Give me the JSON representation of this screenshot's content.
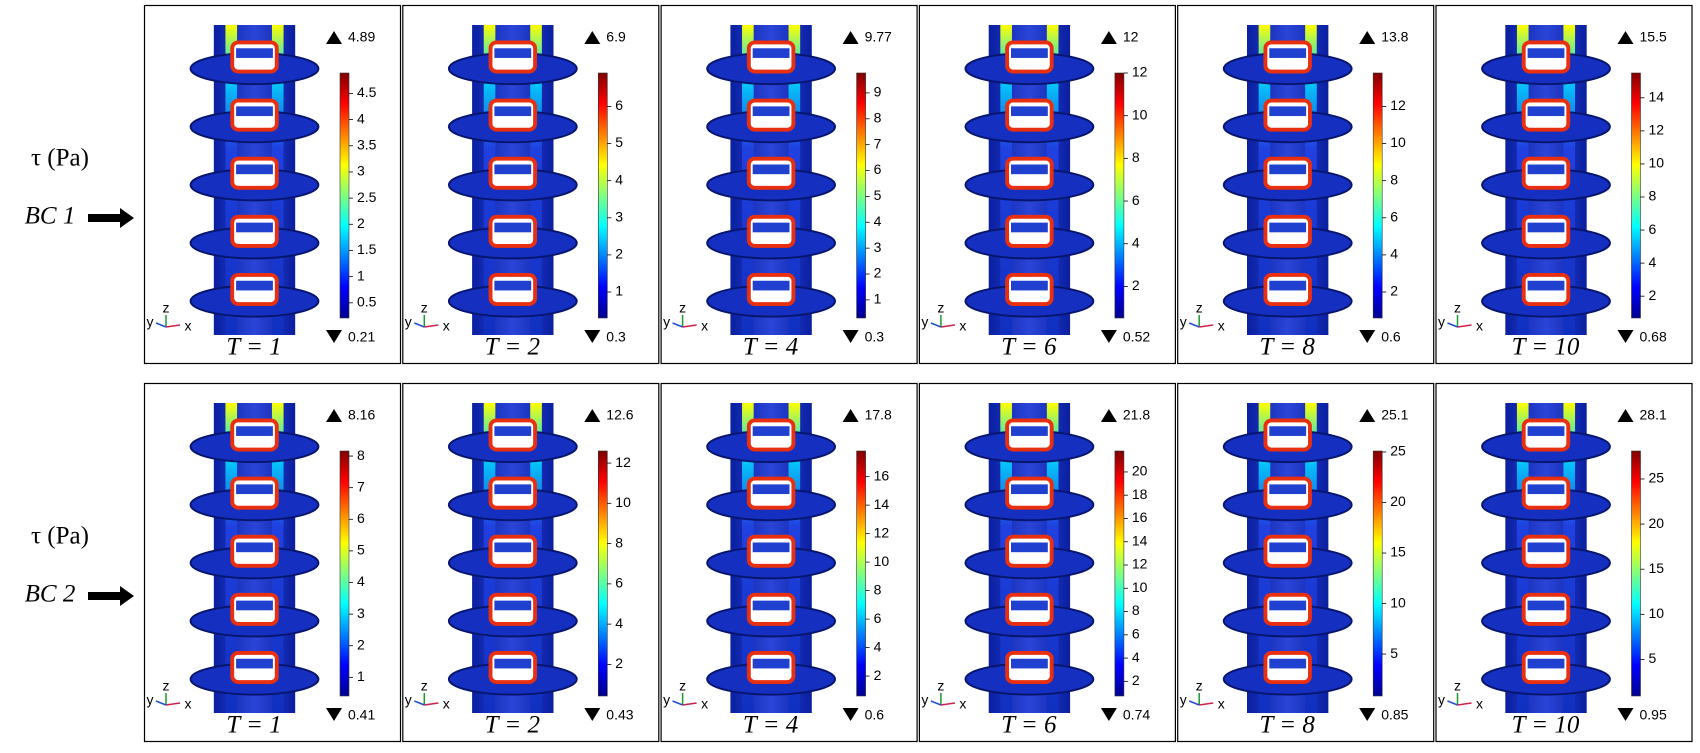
{
  "axis_labels": [
    "y",
    "z",
    "x"
  ],
  "rows": [
    {
      "quantity": "τ (Pa)",
      "bc": "BC 1",
      "panels": [
        {
          "t_label": "T = 1",
          "max": 4.89,
          "min": 0.21,
          "ticks": [
            0.5,
            1,
            1.5,
            2,
            2.5,
            3,
            3.5,
            4,
            4.5
          ]
        },
        {
          "t_label": "T = 2",
          "max": 6.9,
          "min": 0.3,
          "ticks": [
            1,
            2,
            3,
            4,
            5,
            6
          ]
        },
        {
          "t_label": "T = 4",
          "max": 9.77,
          "min": 0.3,
          "ticks": [
            1,
            2,
            3,
            4,
            5,
            6,
            7,
            8,
            9
          ]
        },
        {
          "t_label": "T = 6",
          "max": 12,
          "min": 0.52,
          "ticks": [
            2,
            4,
            6,
            8,
            10,
            12
          ]
        },
        {
          "t_label": "T = 8",
          "max": 13.8,
          "min": 0.6,
          "ticks": [
            2,
            4,
            6,
            8,
            10,
            12
          ]
        },
        {
          "t_label": "T = 10",
          "max": 15.5,
          "min": 0.68,
          "ticks": [
            2,
            4,
            6,
            8,
            10,
            12,
            14
          ]
        }
      ]
    },
    {
      "quantity": "τ (Pa)",
      "bc": "BC 2",
      "panels": [
        {
          "t_label": "T = 1",
          "max": 8.16,
          "min": 0.41,
          "ticks": [
            1,
            2,
            3,
            4,
            5,
            6,
            7,
            8
          ]
        },
        {
          "t_label": "T = 2",
          "max": 12.6,
          "min": 0.43,
          "ticks": [
            2,
            4,
            6,
            8,
            10,
            12
          ]
        },
        {
          "t_label": "T = 4",
          "max": 17.8,
          "min": 0.6,
          "ticks": [
            2,
            4,
            6,
            8,
            10,
            12,
            14,
            16
          ]
        },
        {
          "t_label": "T = 6",
          "max": 21.8,
          "min": 0.74,
          "ticks": [
            2,
            4,
            6,
            8,
            10,
            12,
            14,
            16,
            18,
            20
          ]
        },
        {
          "t_label": "T = 8",
          "max": 25.1,
          "min": 0.85,
          "ticks": [
            5,
            10,
            15,
            20,
            25
          ]
        },
        {
          "t_label": "T = 10",
          "max": 28.1,
          "min": 0.95,
          "ticks": [
            5,
            10,
            15,
            20,
            25
          ]
        }
      ]
    }
  ]
}
